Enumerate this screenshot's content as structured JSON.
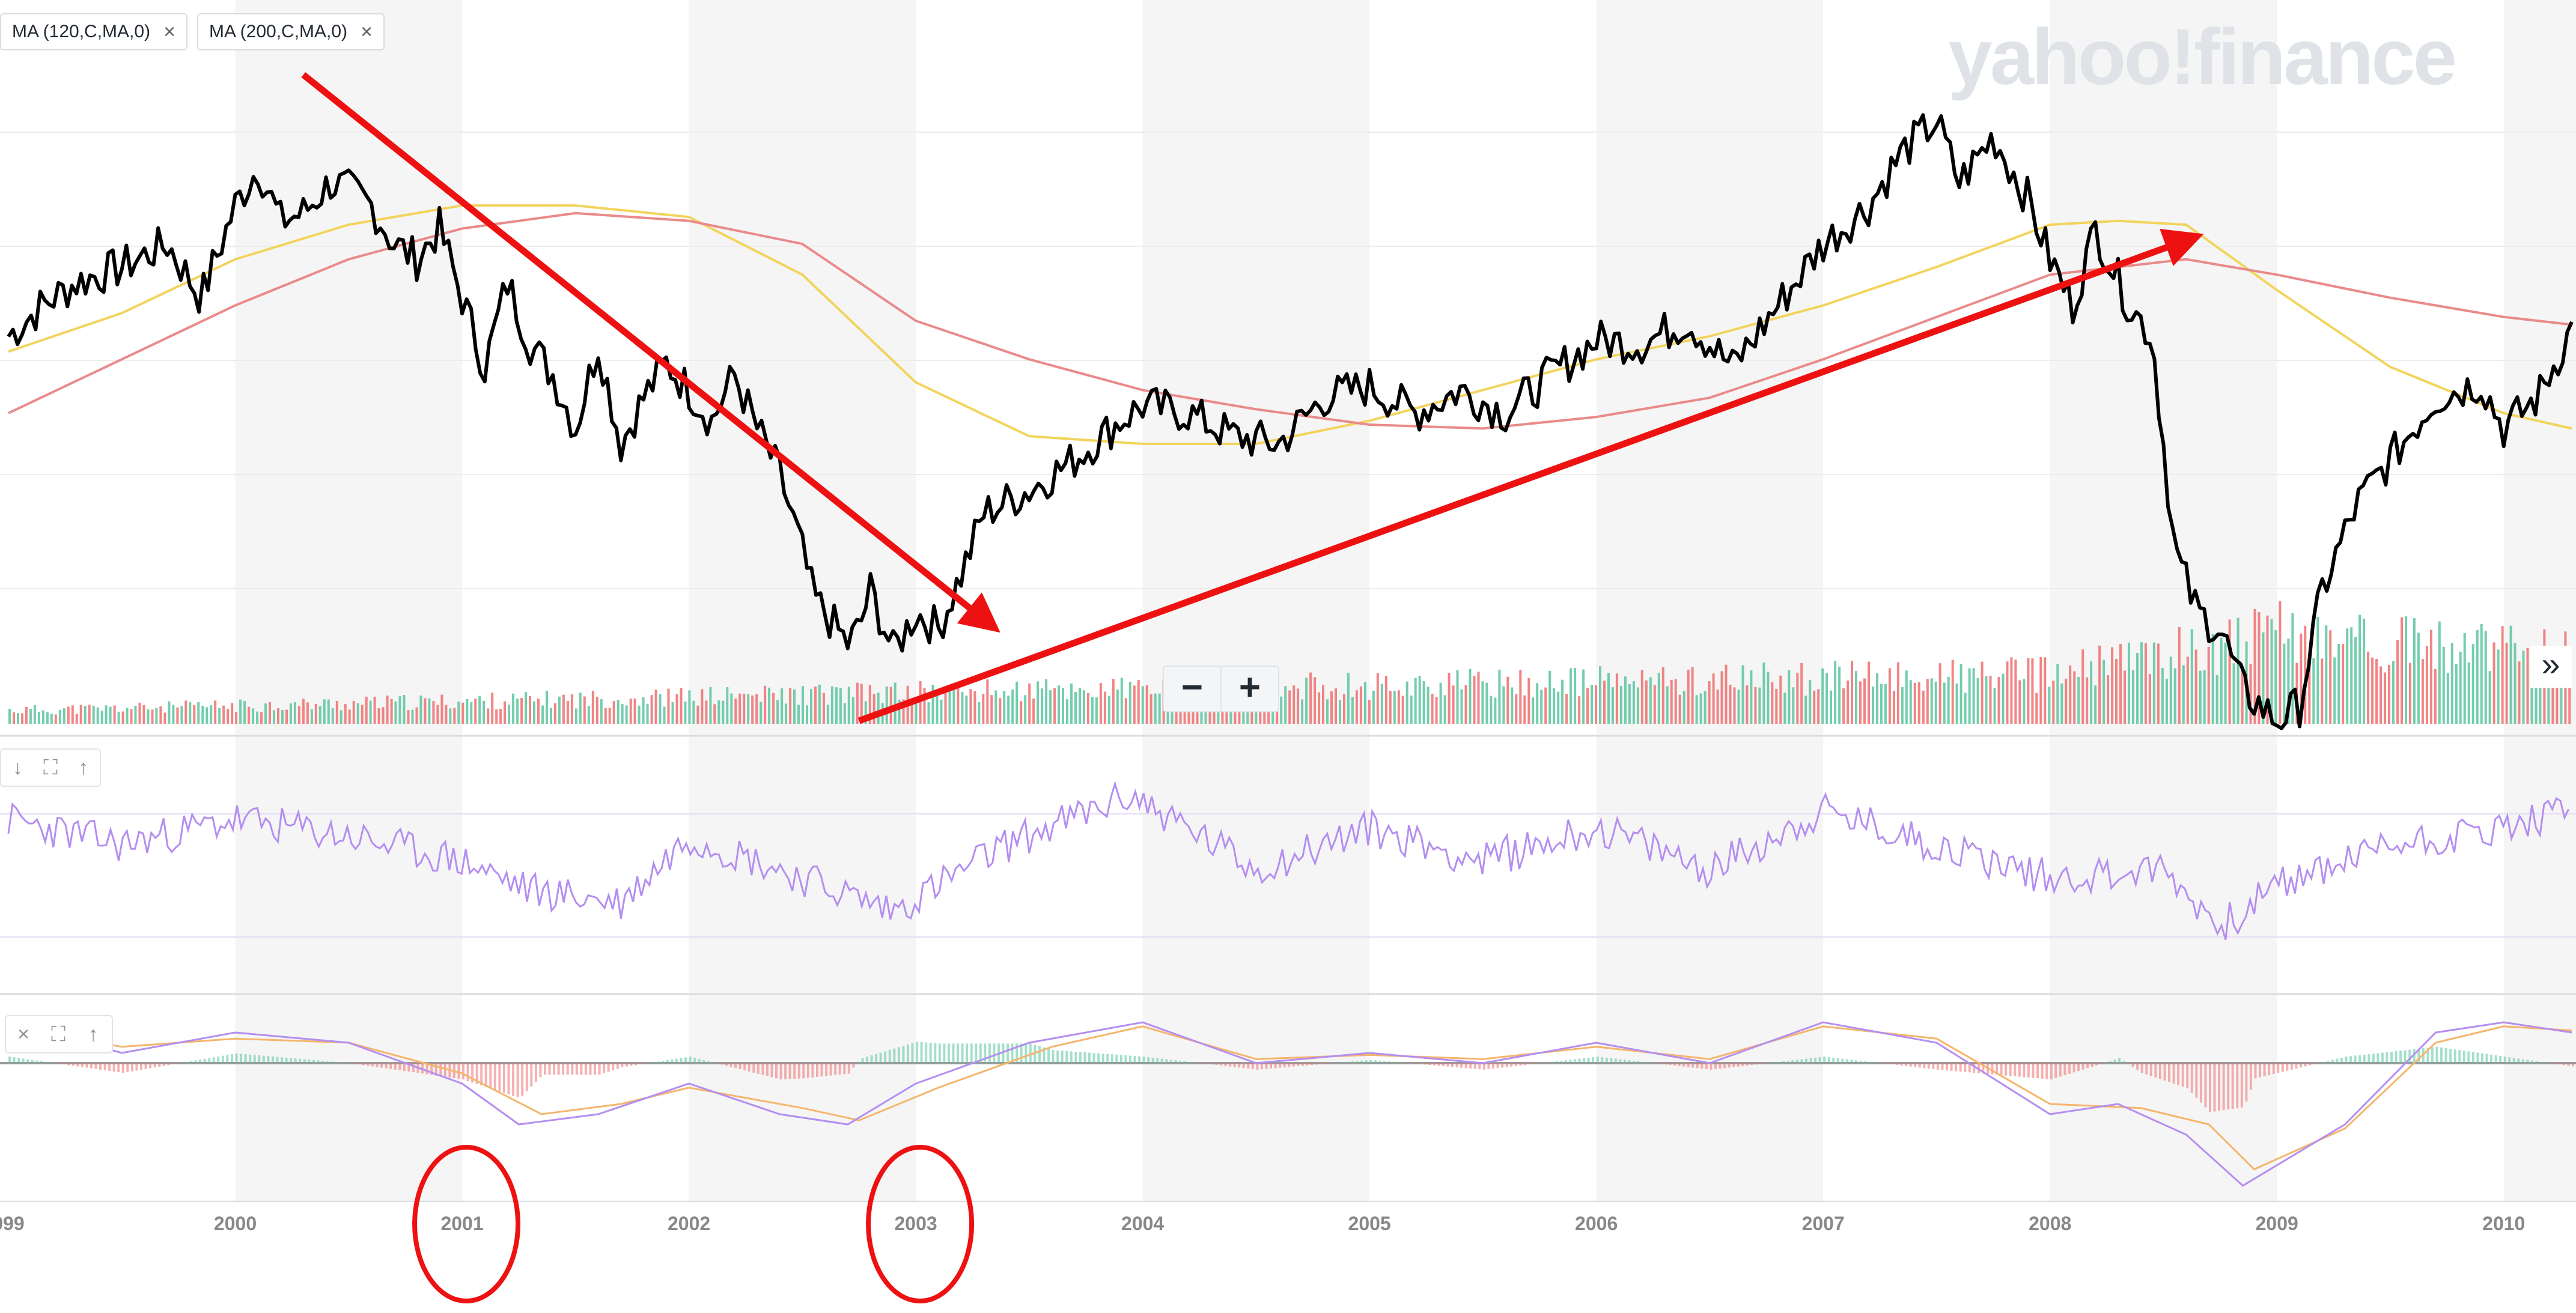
{
  "watermark": "yahoo!finance",
  "indicator_chips": [
    {
      "label": "MA (120,C,MA,0)",
      "close": "×"
    },
    {
      "label": "MA (200,C,MA,0)",
      "close": "×"
    }
  ],
  "zoom": {
    "minus": "−",
    "plus": "+"
  },
  "expand_label": "»",
  "rsi_toolbar": [
    "↓",
    "⛶",
    "↑"
  ],
  "macd_toolbar": [
    "×",
    "⛶",
    "↑"
  ],
  "colors": {
    "price": "#000000",
    "ma120": "#f2d45c",
    "ma200": "#ea8a8a",
    "vol_up": "#5bc49f",
    "vol_down": "#ef6f6f",
    "rsi": "#b48ef0",
    "macd": "#b48ef0",
    "signal": "#f5b56b",
    "annotation": "#ee1111",
    "band": "#f5f5f5",
    "axis_text": "#888888"
  },
  "chart_data": {
    "type": "line",
    "x_ticks": [
      "999",
      "2000",
      "2001",
      "2002",
      "2003",
      "2004",
      "2005",
      "2006",
      "2007",
      "2008",
      "2009",
      "2010"
    ],
    "xlim": [
      1999.0,
      2010.3
    ],
    "price_ylim": [
      780,
      1600
    ],
    "series": [
      {
        "name": "MA (120,C,MA,0)",
        "kind": "ma",
        "x": [
          1999.0,
          1999.5,
          2000.0,
          2000.5,
          2001.0,
          2001.5,
          2002.0,
          2002.5,
          2003.0,
          2003.5,
          2004.0,
          2004.5,
          2005.0,
          2005.5,
          2006.0,
          2006.5,
          2007.0,
          2007.5,
          2008.0,
          2008.3,
          2008.6,
          2009.0,
          2009.5,
          2010.0,
          2010.3
        ],
        "y": [
          1260,
          1310,
          1380,
          1425,
          1450,
          1450,
          1435,
          1360,
          1220,
          1150,
          1140,
          1140,
          1170,
          1210,
          1250,
          1280,
          1320,
          1370,
          1425,
          1430,
          1425,
          1340,
          1240,
          1180,
          1160
        ]
      },
      {
        "name": "MA (200,C,MA,0)",
        "kind": "ma",
        "x": [
          1999.0,
          1999.5,
          2000.0,
          2000.5,
          2001.0,
          2001.5,
          2002.0,
          2002.5,
          2003.0,
          2003.5,
          2004.0,
          2004.5,
          2005.0,
          2005.5,
          2006.0,
          2006.5,
          2007.0,
          2007.5,
          2008.0,
          2008.3,
          2008.6,
          2009.0,
          2009.5,
          2010.0,
          2010.3
        ],
        "y": [
          1180,
          1250,
          1320,
          1380,
          1420,
          1440,
          1430,
          1400,
          1300,
          1250,
          1210,
          1185,
          1165,
          1160,
          1175,
          1200,
          1250,
          1305,
          1360,
          1370,
          1380,
          1360,
          1330,
          1305,
          1295
        ]
      },
      {
        "name": "",
        "kind": "price",
        "x": [
          1999.0,
          1999.15,
          1999.3,
          1999.5,
          1999.7,
          1999.85,
          2000.0,
          2000.1,
          2000.2,
          2000.3,
          2000.42,
          2000.5,
          2000.6,
          2000.7,
          2000.8,
          2000.9,
          2001.0,
          2001.1,
          2001.2,
          2001.3,
          2001.4,
          2001.5,
          2001.6,
          2001.7,
          2001.8,
          2001.9,
          2002.0,
          2002.1,
          2002.2,
          2002.3,
          2002.4,
          2002.5,
          2002.55,
          2002.6,
          2002.7,
          2002.75,
          2002.8,
          2002.9,
          2003.0,
          2003.1,
          2003.2,
          2003.3,
          2003.5,
          2003.7,
          2003.9,
          2004.0,
          2004.2,
          2004.4,
          2004.6,
          2004.8,
          2005.0,
          2005.2,
          2005.4,
          2005.6,
          2005.8,
          2006.0,
          2006.2,
          2006.4,
          2006.6,
          2006.8,
          2007.0,
          2007.2,
          2007.35,
          2007.5,
          2007.6,
          2007.75,
          2007.9,
          2008.0,
          2008.1,
          2008.2,
          2008.35,
          2008.45,
          2008.55,
          2008.65,
          2008.75,
          2008.85,
          2009.0,
          2009.1,
          2009.2,
          2009.35,
          2009.5,
          2009.7,
          2009.9,
          2010.0,
          2010.15,
          2010.3
        ],
        "y": [
          1280,
          1320,
          1350,
          1370,
          1400,
          1330,
          1450,
          1500,
          1430,
          1440,
          1480,
          1470,
          1450,
          1400,
          1380,
          1420,
          1330,
          1240,
          1350,
          1270,
          1230,
          1160,
          1270,
          1140,
          1200,
          1245,
          1210,
          1170,
          1230,
          1160,
          1100,
          1000,
          940,
          920,
          880,
          900,
          950,
          870,
          920,
          900,
          970,
          1050,
          1080,
          1120,
          1170,
          1190,
          1180,
          1150,
          1140,
          1200,
          1215,
          1180,
          1210,
          1180,
          1230,
          1275,
          1270,
          1300,
          1240,
          1320,
          1400,
          1450,
          1520,
          1560,
          1480,
          1540,
          1460,
          1380,
          1320,
          1420,
          1320,
          1280,
          1000,
          920,
          900,
          820,
          780,
          800,
          950,
          1060,
          1120,
          1200,
          1220,
          1160,
          1200,
          1290
        ]
      }
    ],
    "volume": {
      "x": [
        1999.0,
        2003.0,
        2008.0,
        2009.0,
        2010.3
      ],
      "y": [
        0.15,
        0.35,
        0.55,
        1.0,
        0.75
      ]
    },
    "rsi": {
      "x": [
        1999.0,
        1999.5,
        2000.0,
        2000.5,
        2001.0,
        2001.3,
        2001.7,
        2002.0,
        2002.5,
        2002.9,
        2003.4,
        2003.95,
        2004.5,
        2005.0,
        2005.5,
        2006.0,
        2006.5,
        2007.0,
        2007.5,
        2008.0,
        2008.5,
        2008.75,
        2009.0,
        2009.5,
        2010.0,
        2010.3
      ],
      "y": [
        62,
        56,
        62,
        58,
        52,
        45,
        42,
        58,
        48,
        40,
        56,
        68,
        50,
        60,
        52,
        60,
        50,
        64,
        56,
        48,
        50,
        36,
        46,
        56,
        60,
        64
      ]
    },
    "macd": {
      "x": [
        1999.0,
        1999.5,
        2000.0,
        2000.5,
        2001.0,
        2001.25,
        2001.6,
        2002.0,
        2002.4,
        2002.7,
        2003.0,
        2003.5,
        2004.0,
        2004.5,
        2005.0,
        2005.5,
        2006.0,
        2006.5,
        2007.0,
        2007.5,
        2008.0,
        2008.3,
        2008.6,
        2008.85,
        2009.3,
        2009.7,
        2010.0,
        2010.3
      ],
      "y": [
        20,
        5,
        15,
        10,
        -10,
        -30,
        -25,
        -10,
        -25,
        -30,
        -10,
        10,
        20,
        0,
        5,
        0,
        10,
        0,
        20,
        10,
        -25,
        -20,
        -35,
        -60,
        -30,
        15,
        20,
        15
      ]
    },
    "signal": {
      "x": [
        1999.0,
        1999.5,
        2000.0,
        2000.5,
        2001.0,
        2001.35,
        2001.7,
        2002.0,
        2002.5,
        2002.75,
        2003.1,
        2003.6,
        2004.0,
        2004.5,
        2005.0,
        2005.5,
        2006.0,
        2006.5,
        2007.0,
        2007.5,
        2008.0,
        2008.4,
        2008.7,
        2008.9,
        2009.3,
        2009.7,
        2010.0,
        2010.3
      ],
      "y": [
        18,
        8,
        12,
        10,
        -5,
        -25,
        -20,
        -12,
        -22,
        -28,
        -12,
        8,
        18,
        2,
        4,
        2,
        8,
        2,
        18,
        12,
        -20,
        -22,
        -30,
        -52,
        -32,
        10,
        18,
        16
      ]
    },
    "annotations": [
      {
        "type": "arrow",
        "from": [
          2000.3,
          1620
        ],
        "to": [
          2003.35,
          900
        ]
      },
      {
        "type": "arrow",
        "from": [
          2002.75,
          780
        ],
        "to": [
          2008.65,
          1410
        ]
      },
      {
        "type": "circle",
        "around_tick": "2001"
      },
      {
        "type": "circle",
        "around_tick": "2003"
      }
    ]
  }
}
